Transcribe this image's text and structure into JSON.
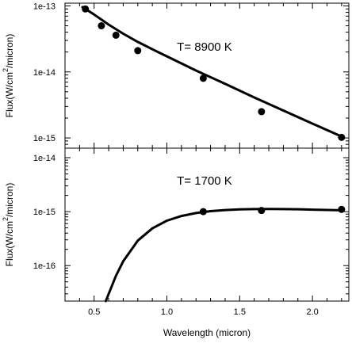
{
  "chart_data": [
    {
      "type": "line",
      "title": "",
      "annotation": "T= 8900 K",
      "ylabel": "Flux(W/cm^2/micron)",
      "ylabel_parts": {
        "main": "Flux(W/cm",
        "sup": "2",
        "tail": "/micron)"
      },
      "xlabel": "",
      "xlim": [
        0.3,
        2.25
      ],
      "ylim": [
        7e-16,
        1.1e-13
      ],
      "yscale": "log",
      "yticks": [
        1e-15,
        1e-14,
        1e-13
      ],
      "ytick_labels": [
        "1e-15",
        "1e-14",
        "1e-13"
      ],
      "series": [
        {
          "kind": "scatter",
          "x": [
            0.44,
            0.55,
            0.65,
            0.8,
            1.25,
            1.65,
            2.2
          ],
          "y": [
            9e-14,
            5e-14,
            3.6e-14,
            2.1e-14,
            8e-15,
            2.5e-15,
            1.02e-15
          ]
        },
        {
          "kind": "line",
          "x": [
            0.42,
            0.5,
            0.6,
            0.7,
            0.8,
            0.9,
            1.0,
            1.2,
            1.4,
            1.6,
            1.8,
            2.0,
            2.2
          ],
          "y": [
            9.6e-14,
            7.4e-14,
            5.2e-14,
            3.8e-14,
            2.85e-14,
            2.2e-14,
            1.72e-14,
            1.05e-14,
            6.6e-15,
            4.1e-15,
            2.6e-15,
            1.65e-15,
            1.05e-15
          ]
        }
      ]
    },
    {
      "type": "line",
      "title": "",
      "annotation": "T= 1700 K",
      "ylabel": "Flux(W/cm^2/micron)",
      "ylabel_parts": {
        "main": "Flux(W/cm",
        "sup": "2",
        "tail": "/micron)"
      },
      "xlabel": "Wavelength (micron)",
      "xlim": [
        0.3,
        2.25
      ],
      "ylim": [
        2.2e-17,
        1.5e-14
      ],
      "yscale": "log",
      "xticks": [
        0.5,
        1.0,
        1.5,
        2.0
      ],
      "xtick_labels": [
        "0.5",
        "1.0",
        "1.5",
        "2.0"
      ],
      "yticks": [
        1e-16,
        1e-15,
        1e-14
      ],
      "ytick_labels": [
        "1e-16",
        "1e-15",
        "1e-14"
      ],
      "series": [
        {
          "kind": "scatter",
          "x": [
            1.25,
            1.65,
            2.2
          ],
          "y": [
            1e-15,
            1.05e-15,
            1.1e-15
          ]
        },
        {
          "kind": "line",
          "x": [
            0.58,
            0.65,
            0.7,
            0.8,
            0.9,
            1.0,
            1.1,
            1.2,
            1.3,
            1.4,
            1.5,
            1.6,
            1.7,
            1.8,
            1.9,
            2.0,
            2.1,
            2.2
          ],
          "y": [
            2.2e-17,
            6.5e-17,
            1.2e-16,
            2.9e-16,
            4.9e-16,
            6.8e-16,
            8.3e-16,
            9.4e-16,
            1.02e-15,
            1.07e-15,
            1.1e-15,
            1.115e-15,
            1.12e-15,
            1.115e-15,
            1.105e-15,
            1.09e-15,
            1.075e-15,
            1.06e-15
          ]
        }
      ]
    }
  ]
}
